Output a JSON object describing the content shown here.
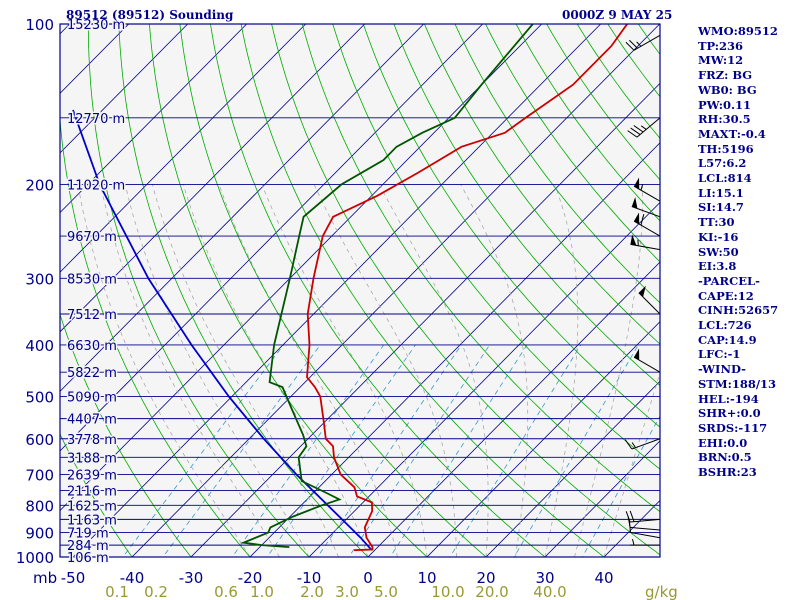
{
  "header": {
    "station_title": "89512 (89512) Sounding",
    "valid_time": "0000Z  9 MAY 25"
  },
  "indices": [
    "WMO:89512",
    "TP:236",
    "MW:12",
    "FRZ: BG",
    "WB0: BG",
    "PW:0.11",
    "RH:30.5",
    "MAXT:-0.4",
    "TH:5196",
    "L57:6.2",
    "LCL:814",
    "LI:15.1",
    "SI:14.7",
    "TT:30",
    "KI:-16",
    "SW:50",
    "EI:3.8",
    "-PARCEL-",
    "CAPE:12",
    "CINH:52657",
    "LCL:726",
    "CAP:14.9",
    "LFC:-1",
    "-WIND-",
    "STM:188/13",
    "HEL:-194",
    "SHR+:0.0",
    "SRDS:-117",
    "EHI:0.0",
    "BRN:0.5",
    "BSHR:23"
  ],
  "colors": {
    "frame": "#00008b",
    "isobar": "#00008b",
    "isotherm": "#00008b",
    "dry_adiabat": "#00aa00",
    "moist_adiabat": "#aaaaaa",
    "mixing_ratio": "#3399cc",
    "temperature": "#cc0000",
    "dewpoint": "#005500",
    "parcel": "#0000cc",
    "wind_barb": "#000000",
    "pressure_labels": "#00008b",
    "height_labels": "#00008b",
    "mixratio_labels": "#999933"
  },
  "chart_data": {
    "type": "skew-t log-p",
    "pressure_axis": {
      "unit_label": "mb",
      "ticks": [
        100,
        200,
        300,
        400,
        500,
        600,
        700,
        800,
        900,
        1000
      ]
    },
    "temperature_axis": {
      "ticks": [
        -50,
        -40,
        -30,
        -20,
        -10,
        0,
        10,
        20,
        30,
        40
      ],
      "range": [
        -50,
        50
      ]
    },
    "mixing_ratio_axis": {
      "unit_label": "g/kg",
      "labels": [
        "0.1",
        "0.2",
        "0.6",
        "1.0",
        "2.0",
        "3.0",
        "5.0",
        "10.0",
        "20.0",
        "40.0"
      ]
    },
    "height_labels": [
      {
        "p": 100,
        "text": "15230 m"
      },
      {
        "p": 150,
        "text": "12770 m"
      },
      {
        "p": 200,
        "text": "11020 m"
      },
      {
        "p": 250,
        "text": "9670 m"
      },
      {
        "p": 300,
        "text": "8530 m"
      },
      {
        "p": 350,
        "text": "7512 m"
      },
      {
        "p": 400,
        "text": "6630 m"
      },
      {
        "p": 450,
        "text": "5822 m"
      },
      {
        "p": 500,
        "text": "5090 m"
      },
      {
        "p": 550,
        "text": "4407 m"
      },
      {
        "p": 600,
        "text": "3778 m"
      },
      {
        "p": 650,
        "text": "3188 m"
      },
      {
        "p": 700,
        "text": "2639 m"
      },
      {
        "p": 750,
        "text": "2116 m"
      },
      {
        "p": 800,
        "text": "1625 m"
      },
      {
        "p": 850,
        "text": "1163 m"
      },
      {
        "p": 900,
        "text": "719 m"
      },
      {
        "p": 950,
        "text": "284 m"
      },
      {
        "p": 1000,
        "text": "106 m"
      }
    ],
    "temperature_profile": [
      {
        "p": 971,
        "t": -3.5
      },
      {
        "p": 968,
        "t": -0.5
      },
      {
        "p": 958,
        "t": -0.9
      },
      {
        "p": 920,
        "t": -3.5
      },
      {
        "p": 880,
        "t": -5.5
      },
      {
        "p": 820,
        "t": -7.0
      },
      {
        "p": 790,
        "t": -8.5
      },
      {
        "p": 770,
        "t": -12.0
      },
      {
        "p": 740,
        "t": -14.0
      },
      {
        "p": 700,
        "t": -18.5
      },
      {
        "p": 650,
        "t": -22.5
      },
      {
        "p": 620,
        "t": -24.5
      },
      {
        "p": 600,
        "t": -27.0
      },
      {
        "p": 560,
        "t": -30.0
      },
      {
        "p": 500,
        "t": -35.0
      },
      {
        "p": 480,
        "t": -37.5
      },
      {
        "p": 460,
        "t": -40.5
      },
      {
        "p": 400,
        "t": -45.5
      },
      {
        "p": 350,
        "t": -51.0
      },
      {
        "p": 300,
        "t": -56.0
      },
      {
        "p": 250,
        "t": -61.5
      },
      {
        "p": 230,
        "t": -63.0
      },
      {
        "p": 210,
        "t": -59.0
      },
      {
        "p": 190,
        "t": -56.0
      },
      {
        "p": 170,
        "t": -53.0
      },
      {
        "p": 160,
        "t": -48.0
      },
      {
        "p": 150,
        "t": -47.0
      },
      {
        "p": 130,
        "t": -44.5
      },
      {
        "p": 110,
        "t": -44.5
      },
      {
        "p": 100,
        "t": -45.5
      }
    ],
    "dewpoint_profile": [
      {
        "p": 958,
        "t": -15.0
      },
      {
        "p": 950,
        "t": -20.0
      },
      {
        "p": 940,
        "t": -23.5
      },
      {
        "p": 900,
        "t": -21.0
      },
      {
        "p": 880,
        "t": -21.5
      },
      {
        "p": 840,
        "t": -19.5
      },
      {
        "p": 800,
        "t": -16.5
      },
      {
        "p": 780,
        "t": -14.5
      },
      {
        "p": 760,
        "t": -17.5
      },
      {
        "p": 720,
        "t": -24.0
      },
      {
        "p": 650,
        "t": -28.5
      },
      {
        "p": 620,
        "t": -29.0
      },
      {
        "p": 590,
        "t": -31.5
      },
      {
        "p": 530,
        "t": -37.5
      },
      {
        "p": 480,
        "t": -43.0
      },
      {
        "p": 470,
        "t": -46.0
      },
      {
        "p": 400,
        "t": -51.5
      },
      {
        "p": 300,
        "t": -60.0
      },
      {
        "p": 250,
        "t": -65.5
      },
      {
        "p": 230,
        "t": -68.0
      },
      {
        "p": 200,
        "t": -67.0
      },
      {
        "p": 180,
        "t": -64.0
      },
      {
        "p": 170,
        "t": -64.0
      },
      {
        "p": 160,
        "t": -62.0
      },
      {
        "p": 150,
        "t": -59.0
      },
      {
        "p": 130,
        "t": -60.0
      },
      {
        "p": 100,
        "t": -61.5
      }
    ],
    "parcel_profile": [
      {
        "p": 971,
        "t": -0.5
      },
      {
        "p": 920,
        "t": -4.5
      },
      {
        "p": 850,
        "t": -10.7
      },
      {
        "p": 700,
        "t": -26.0
      },
      {
        "p": 600,
        "t": -37.5
      },
      {
        "p": 500,
        "t": -50.5
      },
      {
        "p": 400,
        "t": -65.5
      },
      {
        "p": 300,
        "t": -84.0
      },
      {
        "p": 200,
        "t": -108.0
      },
      {
        "p": 145,
        "t": -125.0
      }
    ],
    "wind_barbs": [
      {
        "p": 950,
        "dir": 270,
        "spd": 5
      },
      {
        "p": 920,
        "dir": 280,
        "spd": 10
      },
      {
        "p": 890,
        "dir": 275,
        "spd": 10
      },
      {
        "p": 850,
        "dir": 265,
        "spd": 20
      },
      {
        "p": 600,
        "dir": 250,
        "spd": 15
      },
      {
        "p": 450,
        "dir": 300,
        "spd": 50
      },
      {
        "p": 350,
        "dir": 315,
        "spd": 50
      },
      {
        "p": 265,
        "dir": 280,
        "spd": 55
      },
      {
        "p": 250,
        "dir": 300,
        "spd": 60
      },
      {
        "p": 230,
        "dir": 290,
        "spd": 50
      },
      {
        "p": 215,
        "dir": 300,
        "spd": 55
      },
      {
        "p": 150,
        "dir": 230,
        "spd": 35
      },
      {
        "p": 105,
        "dir": 240,
        "spd": 25
      }
    ]
  }
}
